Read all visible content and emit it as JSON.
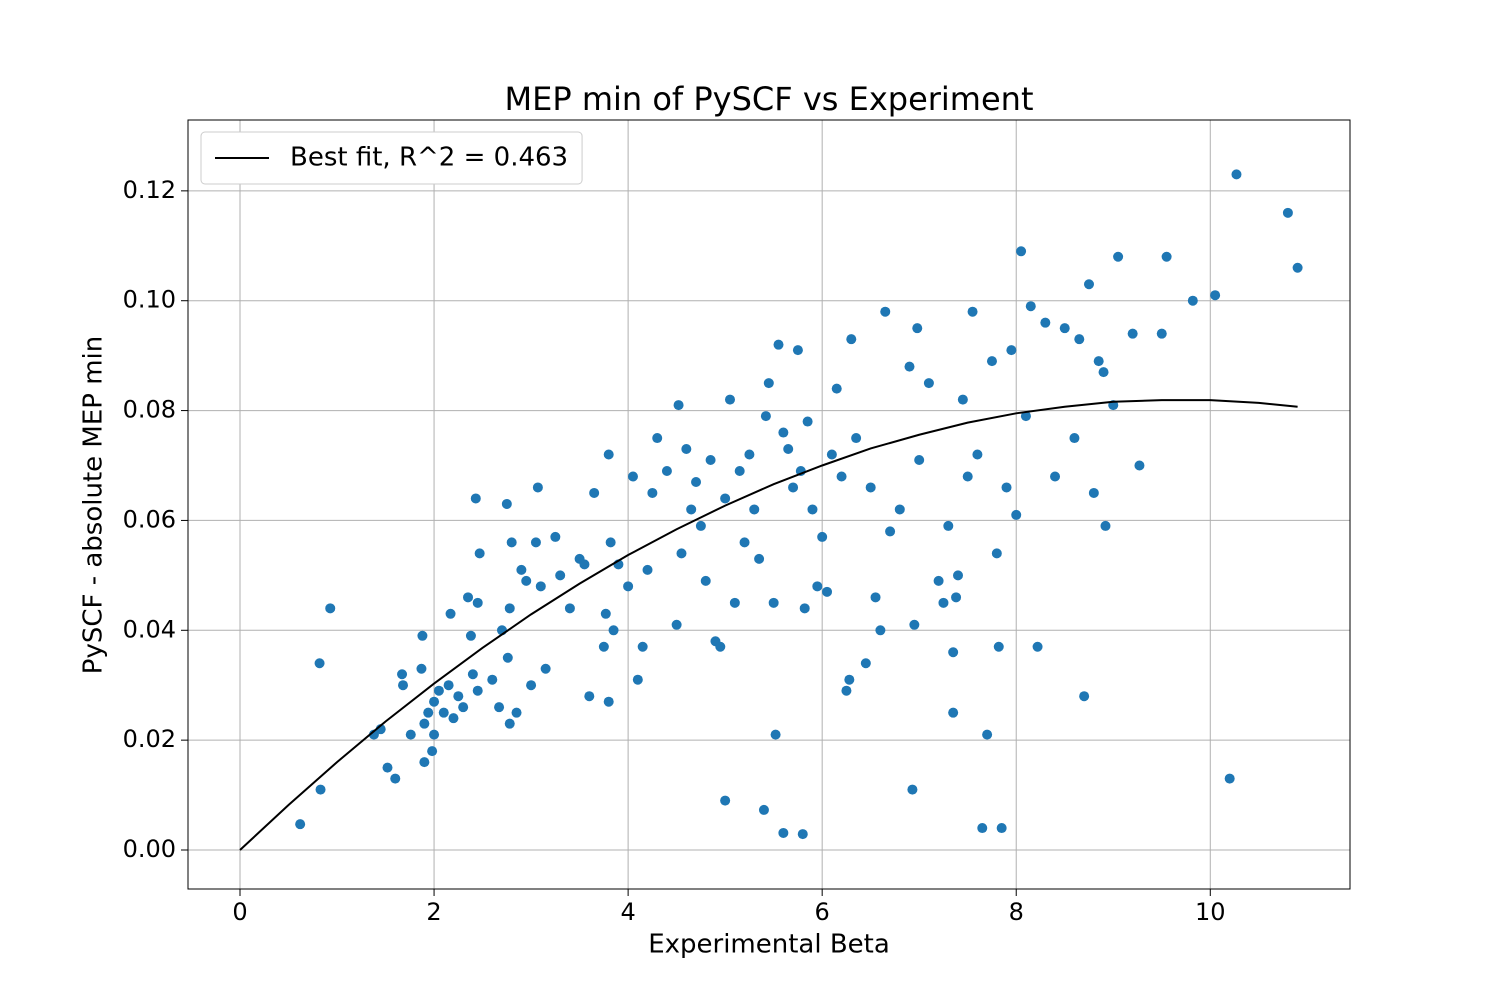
{
  "chart_data": {
    "type": "scatter",
    "title": "MEP min of PySCF vs Experiment",
    "xlabel": "Experimental Beta",
    "ylabel": "PySCF - absolute MEP min",
    "xlim": [
      -0.536,
      11.44
    ],
    "ylim": [
      -0.0071,
      0.1329
    ],
    "xticks": [
      0,
      2,
      4,
      6,
      8,
      10
    ],
    "yticks": [
      {
        "value": 0.0,
        "label": "0.00"
      },
      {
        "value": 0.02,
        "label": "0.02"
      },
      {
        "value": 0.04,
        "label": "0.04"
      },
      {
        "value": 0.06,
        "label": "0.06"
      },
      {
        "value": 0.08,
        "label": "0.08"
      },
      {
        "value": 0.1,
        "label": "0.10"
      },
      {
        "value": 0.12,
        "label": "0.12"
      }
    ],
    "grid": true,
    "legend": "upper left",
    "series": [
      {
        "name": "Best fit, R^2 = 0.463",
        "type": "line",
        "color": "#000000",
        "x": [
          0,
          0.5,
          1,
          1.5,
          2,
          2.5,
          3,
          3.5,
          4,
          4.5,
          5,
          5.5,
          6,
          6.5,
          7,
          7.5,
          8,
          8.5,
          9,
          9.5,
          10,
          10.5,
          10.9
        ],
        "values": [
          0,
          0.0082,
          0.016,
          0.0234,
          0.0303,
          0.0368,
          0.0429,
          0.0485,
          0.0537,
          0.0584,
          0.0627,
          0.0666,
          0.07,
          0.0731,
          0.0756,
          0.0778,
          0.0795,
          0.0807,
          0.0816,
          0.0819,
          0.0819,
          0.0814,
          0.0807
        ]
      },
      {
        "type": "scatter",
        "color": "#1f77b4",
        "x": [
          0.62,
          0.82,
          0.83,
          0.93,
          1.38,
          1.45,
          1.52,
          1.6,
          1.67,
          1.68,
          1.76,
          1.87,
          1.88,
          1.9,
          1.9,
          1.94,
          1.98,
          2.0,
          2.0,
          2.05,
          2.1,
          2.15,
          2.17,
          2.2,
          2.25,
          2.3,
          2.35,
          2.38,
          2.4,
          2.43,
          2.45,
          2.47,
          2.45,
          2.6,
          2.67,
          2.7,
          2.75,
          2.76,
          2.78,
          2.78,
          2.8,
          2.85,
          2.9,
          2.95,
          3.0,
          3.05,
          3.07,
          3.1,
          3.15,
          3.25,
          3.3,
          3.4,
          3.5,
          3.55,
          3.6,
          3.65,
          3.75,
          3.77,
          3.8,
          3.8,
          3.82,
          3.85,
          3.9,
          4.0,
          4.05,
          4.1,
          4.15,
          4.2,
          4.25,
          4.3,
          4.4,
          4.5,
          4.52,
          4.55,
          4.6,
          4.65,
          4.7,
          4.75,
          4.8,
          4.85,
          4.9,
          4.95,
          5.0,
          5.0,
          5.05,
          5.1,
          5.15,
          5.2,
          5.25,
          5.3,
          5.35,
          5.4,
          5.42,
          5.45,
          5.5,
          5.52,
          5.55,
          5.6,
          5.6,
          5.65,
          5.7,
          5.75,
          5.78,
          5.8,
          5.82,
          5.85,
          5.9,
          5.95,
          6.0,
          6.05,
          6.1,
          6.15,
          6.2,
          6.25,
          6.28,
          6.3,
          6.35,
          6.45,
          6.5,
          6.55,
          6.6,
          6.65,
          6.7,
          6.8,
          6.9,
          6.93,
          6.95,
          6.98,
          7.0,
          7.1,
          7.2,
          7.25,
          7.3,
          7.35,
          7.35,
          7.38,
          7.4,
          7.45,
          7.5,
          7.55,
          7.6,
          7.65,
          7.7,
          7.75,
          7.8,
          7.82,
          7.85,
          7.9,
          7.95,
          8.0,
          8.05,
          8.1,
          8.15,
          8.22,
          8.3,
          8.4,
          8.5,
          8.6,
          8.65,
          8.7,
          8.75,
          8.8,
          8.85,
          8.9,
          8.92,
          9.0,
          9.05,
          9.2,
          9.27,
          9.5,
          9.55,
          9.82,
          10.05,
          10.2,
          10.27,
          10.8,
          10.9
        ],
        "values": [
          0.0047,
          0.034,
          0.011,
          0.044,
          0.021,
          0.022,
          0.015,
          0.013,
          0.032,
          0.03,
          0.021,
          0.033,
          0.039,
          0.023,
          0.016,
          0.025,
          0.018,
          0.021,
          0.027,
          0.029,
          0.025,
          0.03,
          0.043,
          0.024,
          0.028,
          0.026,
          0.046,
          0.039,
          0.032,
          0.064,
          0.045,
          0.054,
          0.029,
          0.031,
          0.026,
          0.04,
          0.063,
          0.035,
          0.044,
          0.023,
          0.056,
          0.025,
          0.051,
          0.049,
          0.03,
          0.056,
          0.066,
          0.048,
          0.033,
          0.057,
          0.05,
          0.044,
          0.053,
          0.052,
          0.028,
          0.065,
          0.037,
          0.043,
          0.027,
          0.072,
          0.056,
          0.04,
          0.052,
          0.048,
          0.068,
          0.031,
          0.037,
          0.051,
          0.065,
          0.075,
          0.069,
          0.041,
          0.081,
          0.054,
          0.073,
          0.062,
          0.067,
          0.059,
          0.049,
          0.071,
          0.038,
          0.037,
          0.064,
          0.009,
          0.082,
          0.045,
          0.069,
          0.056,
          0.072,
          0.062,
          0.053,
          0.0073,
          0.079,
          0.085,
          0.045,
          0.021,
          0.092,
          0.0031,
          0.076,
          0.073,
          0.066,
          0.091,
          0.069,
          0.0029,
          0.044,
          0.078,
          0.062,
          0.048,
          0.057,
          0.047,
          0.072,
          0.084,
          0.068,
          0.029,
          0.031,
          0.093,
          0.075,
          0.034,
          0.066,
          0.046,
          0.04,
          0.098,
          0.058,
          0.062,
          0.088,
          0.011,
          0.041,
          0.095,
          0.071,
          0.085,
          0.049,
          0.045,
          0.059,
          0.036,
          0.025,
          0.046,
          0.05,
          0.082,
          0.068,
          0.098,
          0.072,
          0.004,
          0.021,
          0.089,
          0.054,
          0.037,
          0.004,
          0.066,
          0.091,
          0.061,
          0.109,
          0.079,
          0.099,
          0.037,
          0.096,
          0.068,
          0.095,
          0.075,
          0.093,
          0.028,
          0.103,
          0.065,
          0.089,
          0.087,
          0.059,
          0.081,
          0.108,
          0.094,
          0.07,
          0.094,
          0.108,
          0.1,
          0.101,
          0.013,
          0.123,
          0.116,
          0.106
        ]
      }
    ]
  }
}
